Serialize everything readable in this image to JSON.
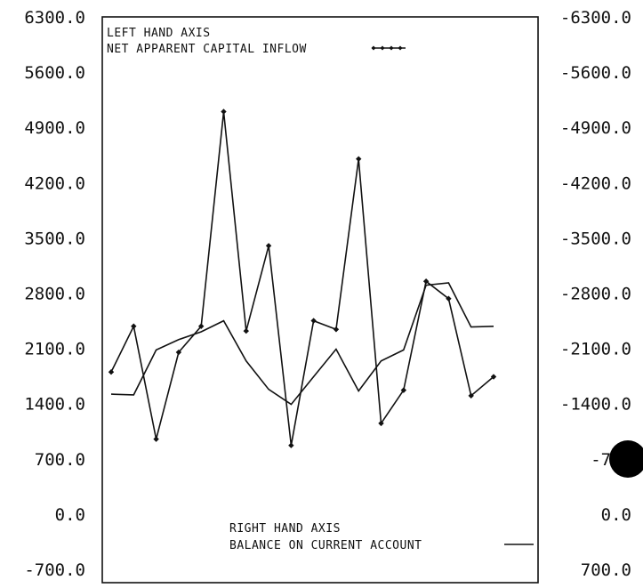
{
  "chart_data": {
    "type": "line",
    "title": "",
    "left_axis": {
      "ylim": [
        -700,
        6300
      ],
      "ticks": [
        -700,
        0,
        700,
        1400,
        2100,
        2800,
        3500,
        4200,
        4900,
        5600,
        6300
      ],
      "tick_labels": [
        "-700.0",
        "0.0",
        "700.0",
        "1400.0",
        "2100.0",
        "2800.0",
        "3500.0",
        "4200.0",
        "4900.0",
        "5600.0",
        "6300.0"
      ]
    },
    "right_axis": {
      "reversed": true,
      "ylim": [
        700,
        -6300
      ],
      "ticks": [
        700,
        0,
        -700,
        -1400,
        -2100,
        -2800,
        -3500,
        -4200,
        -4900,
        -5600,
        -6300
      ],
      "tick_labels": [
        "700.0",
        "0.0",
        "-700",
        "-1400.0",
        "-2100.0",
        "-2800.0",
        "-3500.0",
        "-4200.0",
        "-4900.0",
        "-5600.0",
        "-6300.0"
      ]
    },
    "x_count": 18,
    "series": [
      {
        "name": "NET APPARENT CAPITAL INFLOW",
        "axis": "left",
        "marker": "diamond",
        "values": [
          1800,
          2380,
          950,
          2050,
          2380,
          5100,
          2320,
          3400,
          870,
          2450,
          2340,
          4500,
          1150,
          1570,
          2950,
          2730,
          1500,
          1740
        ]
      },
      {
        "name": "BALANCE ON CURRENT ACCOUNT",
        "axis": "right",
        "marker": "none",
        "values": [
          -1520,
          -1510,
          -2080,
          -2210,
          -2310,
          -2450,
          -1940,
          -1580,
          -1390,
          -1740,
          -2090,
          -1560,
          -1940,
          -2080,
          -2900,
          -2930,
          -2370,
          -2380
        ]
      }
    ],
    "legend": {
      "top": {
        "heading": "LEFT HAND AXIS",
        "label": "NET APPARENT CAPITAL INFLOW"
      },
      "bottom": {
        "heading": "RIGHT HAND AXIS",
        "label": "BALANCE ON CURRENT ACCOUNT"
      }
    },
    "grid": false
  }
}
